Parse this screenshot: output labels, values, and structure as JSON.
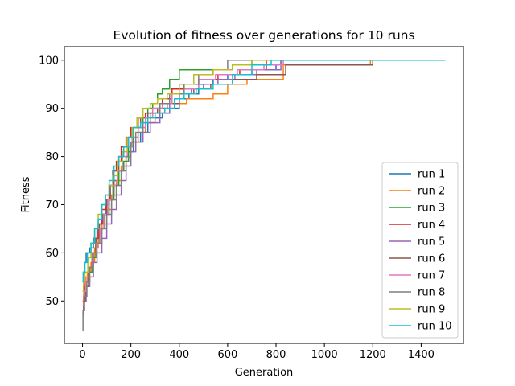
{
  "chart_data": {
    "type": "line",
    "title": "Evolution of fitness over generations for 10 runs",
    "xlabel": "Generation",
    "ylabel": "Fitness",
    "xlim": [
      -75,
      1575
    ],
    "ylim": [
      41.2,
      102.8
    ],
    "xticks": [
      0,
      200,
      400,
      600,
      800,
      1000,
      1200,
      1400
    ],
    "yticks": [
      50,
      60,
      70,
      80,
      90,
      100
    ],
    "grid": false,
    "legend_position": "lower-right",
    "series": [
      {
        "name": "run 1",
        "color": "#1f77b4",
        "x": [
          0,
          3,
          8,
          15,
          30,
          45,
          60,
          80,
          95,
          110,
          130,
          150,
          170,
          190,
          210,
          240,
          270,
          300,
          330,
          360,
          400,
          440,
          480,
          540,
          600,
          700,
          800,
          820,
          1500
        ],
        "y": [
          54,
          56,
          58,
          60,
          61,
          63,
          65,
          68,
          70,
          72,
          75,
          77,
          79,
          81,
          83,
          85,
          87,
          88,
          89,
          90,
          92,
          93,
          95,
          96,
          97,
          98,
          99,
          100,
          100
        ]
      },
      {
        "name": "run 2",
        "color": "#ff7f0e",
        "x": [
          0,
          5,
          10,
          20,
          35,
          50,
          65,
          80,
          100,
          120,
          140,
          160,
          180,
          200,
          230,
          260,
          300,
          340,
          380,
          430,
          480,
          540,
          600,
          680,
          750,
          830,
          1190,
          1500
        ],
        "y": [
          50,
          52,
          54,
          56,
          58,
          61,
          64,
          66,
          69,
          72,
          75,
          78,
          80,
          83,
          85,
          87,
          89,
          90,
          91,
          92,
          92,
          93,
          95,
          96,
          96,
          99,
          100,
          100
        ]
      },
      {
        "name": "run 3",
        "color": "#2ca02c",
        "x": [
          0,
          5,
          12,
          25,
          40,
          55,
          70,
          90,
          110,
          130,
          150,
          170,
          190,
          210,
          230,
          250,
          270,
          290,
          310,
          330,
          360,
          400,
          500,
          620,
          700,
          1500
        ],
        "y": [
          47,
          50,
          53,
          56,
          59,
          62,
          65,
          68,
          71,
          74,
          77,
          79,
          82,
          84,
          86,
          88,
          90,
          91,
          93,
          94,
          96,
          98,
          98,
          99,
          100,
          100
        ]
      },
      {
        "name": "run 4",
        "color": "#d62728",
        "x": [
          0,
          5,
          15,
          25,
          40,
          55,
          65,
          80,
          95,
          110,
          125,
          140,
          160,
          180,
          200,
          230,
          260,
          290,
          330,
          370,
          420,
          480,
          560,
          650,
          760,
          1500
        ],
        "y": [
          47,
          51,
          54,
          57,
          60,
          63,
          66,
          69,
          71,
          74,
          77,
          79,
          82,
          84,
          86,
          88,
          89,
          90,
          92,
          94,
          95,
          96,
          97,
          98,
          100,
          100
        ]
      },
      {
        "name": "run 5",
        "color": "#9467bd",
        "x": [
          0,
          8,
          15,
          30,
          45,
          60,
          80,
          100,
          120,
          140,
          160,
          180,
          200,
          220,
          250,
          280,
          320,
          360,
          400,
          450,
          500,
          560,
          630,
          720,
          820,
          1500
        ],
        "y": [
          48,
          50,
          53,
          55,
          58,
          60,
          63,
          66,
          69,
          72,
          75,
          78,
          81,
          83,
          85,
          87,
          89,
          91,
          93,
          94,
          95,
          96,
          97,
          98,
          100,
          100
        ]
      },
      {
        "name": "run 6",
        "color": "#8c564b",
        "x": [
          0,
          5,
          12,
          25,
          40,
          55,
          70,
          85,
          100,
          115,
          130,
          150,
          170,
          190,
          210,
          240,
          270,
          310,
          350,
          400,
          460,
          530,
          620,
          720,
          840,
          1200,
          1500
        ],
        "y": [
          47,
          50,
          53,
          57,
          60,
          63,
          66,
          68,
          71,
          74,
          77,
          80,
          82,
          84,
          86,
          88,
          89,
          90,
          91,
          93,
          94,
          95,
          96,
          97,
          99,
          100,
          100
        ]
      },
      {
        "name": "run 7",
        "color": "#e377c2",
        "x": [
          0,
          6,
          14,
          28,
          42,
          58,
          72,
          88,
          105,
          125,
          145,
          165,
          185,
          205,
          230,
          260,
          290,
          330,
          370,
          420,
          480,
          550,
          640,
          750,
          830,
          1500
        ],
        "y": [
          49,
          52,
          55,
          57,
          60,
          62,
          65,
          68,
          71,
          74,
          77,
          80,
          82,
          84,
          86,
          88,
          90,
          91,
          93,
          94,
          96,
          97,
          98,
          99,
          100,
          100
        ]
      },
      {
        "name": "run 8",
        "color": "#7f7f7f",
        "x": [
          0,
          2,
          8,
          18,
          30,
          45,
          60,
          80,
          100,
          120,
          140,
          160,
          180,
          200,
          220,
          250,
          280,
          320,
          360,
          420,
          480,
          540,
          600,
          1500
        ],
        "y": [
          44,
          48,
          51,
          54,
          57,
          60,
          62,
          65,
          68,
          71,
          74,
          77,
          80,
          83,
          85,
          87,
          89,
          91,
          93,
          95,
          97,
          98,
          100,
          100
        ]
      },
      {
        "name": "run 9",
        "color": "#bcbd22",
        "x": [
          0,
          4,
          10,
          22,
          35,
          50,
          65,
          80,
          95,
          110,
          125,
          145,
          165,
          185,
          205,
          225,
          250,
          280,
          310,
          350,
          400,
          460,
          540,
          620,
          700,
          1500
        ],
        "y": [
          52,
          54,
          56,
          59,
          62,
          65,
          68,
          70,
          72,
          74,
          76,
          79,
          81,
          84,
          86,
          88,
          90,
          91,
          92,
          93,
          95,
          97,
          98,
          99,
          100,
          100
        ]
      },
      {
        "name": "run 10",
        "color": "#17becf",
        "x": [
          0,
          4,
          10,
          20,
          35,
          50,
          65,
          80,
          95,
          110,
          130,
          150,
          170,
          190,
          210,
          240,
          270,
          300,
          340,
          380,
          420,
          470,
          540,
          620,
          700,
          780,
          1500
        ],
        "y": [
          54,
          56,
          58,
          60,
          62,
          65,
          67,
          70,
          72,
          75,
          78,
          80,
          82,
          84,
          86,
          87,
          88,
          89,
          90,
          92,
          93,
          94,
          95,
          97,
          99,
          100,
          100
        ]
      }
    ]
  }
}
